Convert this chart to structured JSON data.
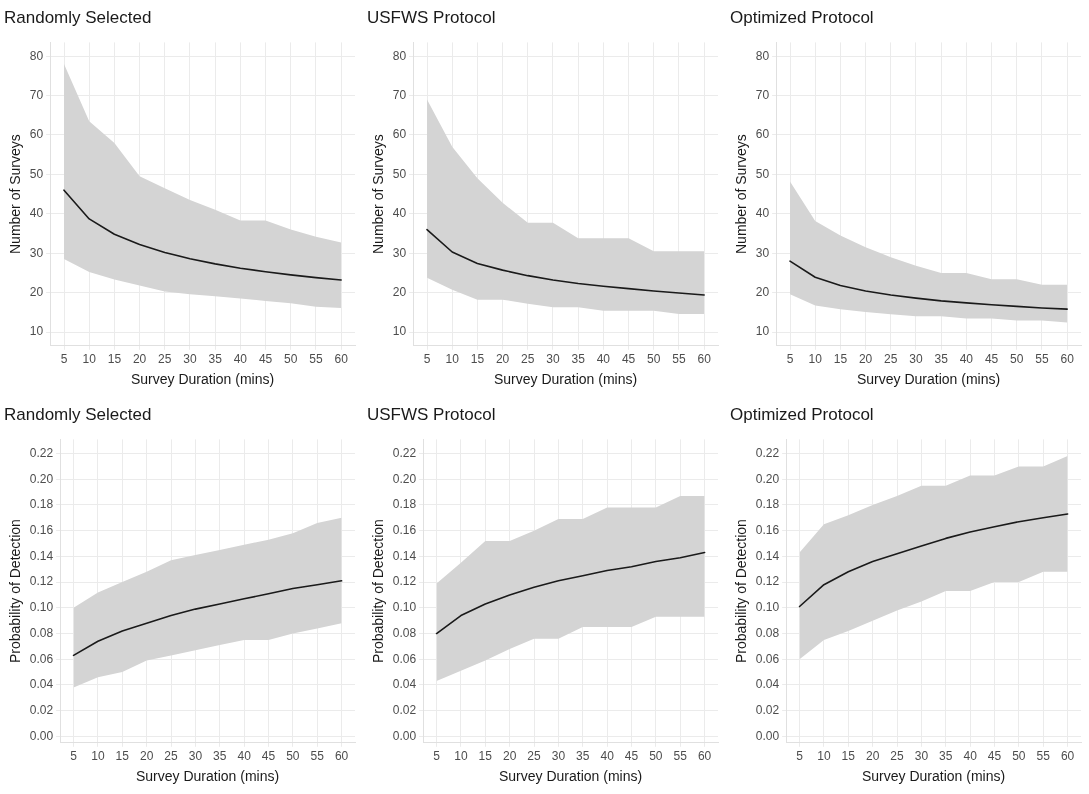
{
  "chart_data": [
    {
      "type": "line",
      "title": "Randomly Selected",
      "xlabel": "Survey Duration (mins)",
      "ylabel": "Number of Surveys",
      "x": [
        5,
        10,
        15,
        20,
        25,
        30,
        35,
        40,
        45,
        50,
        55,
        60
      ],
      "xlim": [
        2.25,
        62.75
      ],
      "xticks": [
        5,
        10,
        15,
        20,
        25,
        30,
        35,
        40,
        45,
        50,
        55,
        60
      ],
      "ylim": [
        6.5,
        83.5
      ],
      "yticks": [
        10,
        20,
        30,
        40,
        50,
        60,
        70,
        80
      ],
      "grid": true,
      "series": [
        {
          "color": "#1a1a1a",
          "values": [
            46,
            38.7,
            34.8,
            32.2,
            30.2,
            28.6,
            27.3,
            26.2,
            25.3,
            24.5,
            23.8,
            23.2
          ],
          "lower": [
            28.5,
            25.2,
            23.3,
            21.8,
            20.3,
            19.6,
            19.1,
            18.5,
            17.9,
            17.3,
            16.4,
            16.1
          ],
          "upper": [
            78,
            63.5,
            58,
            49.5,
            46.5,
            43.5,
            41,
            38.3,
            38.3,
            36,
            34.2,
            32.7
          ]
        }
      ]
    },
    {
      "type": "line",
      "title": "USFWS Protocol",
      "xlabel": "Survey Duration (mins)",
      "ylabel": "Number of Surveys",
      "x": [
        5,
        10,
        15,
        20,
        25,
        30,
        35,
        40,
        45,
        50,
        55,
        60
      ],
      "xlim": [
        2.25,
        62.75
      ],
      "xticks": [
        5,
        10,
        15,
        20,
        25,
        30,
        35,
        40,
        45,
        50,
        55,
        60
      ],
      "ylim": [
        6.5,
        83.5
      ],
      "yticks": [
        10,
        20,
        30,
        40,
        50,
        60,
        70,
        80
      ],
      "grid": true,
      "series": [
        {
          "color": "#1a1a1a",
          "values": [
            36,
            30.3,
            27.4,
            25.7,
            24.3,
            23.2,
            22.3,
            21.6,
            21,
            20.4,
            19.9,
            19.4
          ],
          "lower": [
            23.8,
            20.7,
            18.2,
            18.2,
            17.2,
            16.3,
            16.3,
            15.4,
            15.4,
            15.4,
            14.6,
            14.6
          ],
          "upper": [
            69,
            57,
            49,
            42.8,
            37.7,
            37.7,
            33.8,
            33.8,
            33.8,
            30.5,
            30.5,
            30.5
          ]
        }
      ]
    },
    {
      "type": "line",
      "title": "Optimized Protocol",
      "xlabel": "Survey Duration (mins)",
      "ylabel": "Number of Surveys",
      "x": [
        5,
        10,
        15,
        20,
        25,
        30,
        35,
        40,
        45,
        50,
        55,
        60
      ],
      "xlim": [
        2.25,
        62.75
      ],
      "xticks": [
        5,
        10,
        15,
        20,
        25,
        30,
        35,
        40,
        45,
        50,
        55,
        60
      ],
      "ylim": [
        6.5,
        83.5
      ],
      "yticks": [
        10,
        20,
        30,
        40,
        50,
        60,
        70,
        80
      ],
      "grid": true,
      "series": [
        {
          "color": "#1a1a1a",
          "values": [
            28,
            23.9,
            21.8,
            20.4,
            19.4,
            18.6,
            17.9,
            17.4,
            16.9,
            16.5,
            16.1,
            15.8
          ],
          "lower": [
            19.6,
            16.7,
            15.8,
            15.1,
            14.5,
            14,
            14,
            13.4,
            13.4,
            12.9,
            12.9,
            12.4
          ],
          "upper": [
            48.2,
            38.2,
            34.5,
            31.5,
            29,
            26.8,
            25,
            25,
            23.4,
            23.4,
            22,
            22
          ]
        }
      ]
    },
    {
      "type": "line",
      "title": "Randomly Selected",
      "xlabel": "Survey Duration (mins)",
      "ylabel": "Probability of Detection",
      "x": [
        5,
        10,
        15,
        20,
        25,
        30,
        35,
        40,
        45,
        50,
        55,
        60
      ],
      "xlim": [
        2.25,
        62.75
      ],
      "xticks": [
        5,
        10,
        15,
        20,
        25,
        30,
        35,
        40,
        45,
        50,
        55,
        60
      ],
      "ylim": [
        -0.005,
        0.231
      ],
      "yticks": [
        {
          "value": 0,
          "label": "0.00"
        },
        {
          "value": 0.02,
          "label": "0.02"
        },
        {
          "value": 0.04,
          "label": "0.04"
        },
        {
          "value": 0.06,
          "label": "0.06"
        },
        {
          "value": 0.08,
          "label": "0.08"
        },
        {
          "value": 0.1,
          "label": "0.10"
        },
        {
          "value": 0.12,
          "label": "0.12"
        },
        {
          "value": 0.14,
          "label": "0.14"
        },
        {
          "value": 0.16,
          "label": "0.16"
        },
        {
          "value": 0.18,
          "label": "0.18"
        },
        {
          "value": 0.2,
          "label": "0.20"
        },
        {
          "value": 0.22,
          "label": "0.22"
        }
      ],
      "grid": true,
      "series": [
        {
          "color": "#1a1a1a",
          "values": [
            0.063,
            0.074,
            0.082,
            0.088,
            0.094,
            0.099,
            0.103,
            0.107,
            0.111,
            0.115,
            0.118,
            0.121
          ],
          "lower": [
            0.038,
            0.046,
            0.05,
            0.059,
            0.063,
            0.067,
            0.071,
            0.075,
            0.075,
            0.08,
            0.084,
            0.088
          ],
          "upper": [
            0.1,
            0.112,
            0.12,
            0.128,
            0.137,
            0.141,
            0.145,
            0.149,
            0.153,
            0.158,
            0.166,
            0.17
          ]
        }
      ]
    },
    {
      "type": "line",
      "title": "USFWS Protocol",
      "xlabel": "Survey Duration (mins)",
      "ylabel": "Probability of Detection",
      "x": [
        5,
        10,
        15,
        20,
        25,
        30,
        35,
        40,
        45,
        50,
        55,
        60
      ],
      "xlim": [
        2.25,
        62.75
      ],
      "xticks": [
        5,
        10,
        15,
        20,
        25,
        30,
        35,
        40,
        45,
        50,
        55,
        60
      ],
      "ylim": [
        -0.005,
        0.231
      ],
      "yticks": [
        {
          "value": 0,
          "label": "0.00"
        },
        {
          "value": 0.02,
          "label": "0.02"
        },
        {
          "value": 0.04,
          "label": "0.04"
        },
        {
          "value": 0.06,
          "label": "0.06"
        },
        {
          "value": 0.08,
          "label": "0.08"
        },
        {
          "value": 0.1,
          "label": "0.10"
        },
        {
          "value": 0.12,
          "label": "0.12"
        },
        {
          "value": 0.14,
          "label": "0.14"
        },
        {
          "value": 0.16,
          "label": "0.16"
        },
        {
          "value": 0.18,
          "label": "0.18"
        },
        {
          "value": 0.2,
          "label": "0.20"
        },
        {
          "value": 0.22,
          "label": "0.22"
        }
      ],
      "grid": true,
      "series": [
        {
          "color": "#1a1a1a",
          "values": [
            0.08,
            0.094,
            0.103,
            0.11,
            0.116,
            0.121,
            0.125,
            0.129,
            0.132,
            0.136,
            0.139,
            0.143
          ],
          "lower": [
            0.043,
            0.051,
            0.059,
            0.068,
            0.076,
            0.076,
            0.085,
            0.085,
            0.085,
            0.093,
            0.093,
            0.093
          ],
          "upper": [
            0.119,
            0.135,
            0.152,
            0.152,
            0.16,
            0.169,
            0.169,
            0.178,
            0.178,
            0.178,
            0.187,
            0.187
          ]
        }
      ]
    },
    {
      "type": "line",
      "title": "Optimized Protocol",
      "xlabel": "Survey Duration (mins)",
      "ylabel": "Probability of Detection",
      "x": [
        5,
        10,
        15,
        20,
        25,
        30,
        35,
        40,
        45,
        50,
        55,
        60
      ],
      "xlim": [
        2.25,
        62.75
      ],
      "xticks": [
        5,
        10,
        15,
        20,
        25,
        30,
        35,
        40,
        45,
        50,
        55,
        60
      ],
      "ylim": [
        -0.005,
        0.231
      ],
      "yticks": [
        {
          "value": 0,
          "label": "0.00"
        },
        {
          "value": 0.02,
          "label": "0.02"
        },
        {
          "value": 0.04,
          "label": "0.04"
        },
        {
          "value": 0.06,
          "label": "0.06"
        },
        {
          "value": 0.08,
          "label": "0.08"
        },
        {
          "value": 0.1,
          "label": "0.10"
        },
        {
          "value": 0.12,
          "label": "0.12"
        },
        {
          "value": 0.14,
          "label": "0.14"
        },
        {
          "value": 0.16,
          "label": "0.16"
        },
        {
          "value": 0.18,
          "label": "0.18"
        },
        {
          "value": 0.2,
          "label": "0.20"
        },
        {
          "value": 0.22,
          "label": "0.22"
        }
      ],
      "grid": true,
      "series": [
        {
          "color": "#1a1a1a",
          "values": [
            0.101,
            0.118,
            0.128,
            0.136,
            0.142,
            0.148,
            0.154,
            0.159,
            0.163,
            0.167,
            0.17,
            0.173
          ],
          "lower": [
            0.06,
            0.075,
            0.082,
            0.09,
            0.098,
            0.105,
            0.113,
            0.113,
            0.12,
            0.12,
            0.128,
            0.128
          ],
          "upper": [
            0.143,
            0.165,
            0.172,
            0.18,
            0.187,
            0.195,
            0.195,
            0.203,
            0.203,
            0.21,
            0.21,
            0.218
          ]
        }
      ]
    }
  ]
}
